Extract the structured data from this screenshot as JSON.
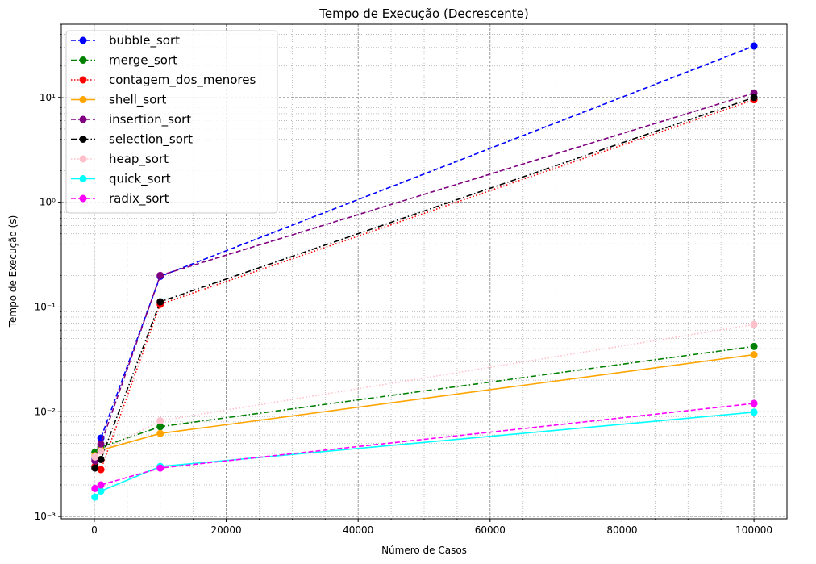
{
  "chart_data": {
    "type": "line",
    "title": "Tempo de Execução (Decrescente)",
    "xlabel": "Número de Casos",
    "ylabel": "Tempo de Execução (s)",
    "xscale": "linear",
    "yscale": "log",
    "xlim": [
      -5000,
      105000
    ],
    "ylim": [
      0.00095,
      50
    ],
    "x_ticks": [
      0,
      20000,
      40000,
      60000,
      80000,
      100000
    ],
    "x_tick_labels": [
      "0",
      "20000",
      "40000",
      "60000",
      "80000",
      "100000"
    ],
    "y_ticks": [
      0.001,
      0.01,
      0.1,
      1,
      10
    ],
    "y_tick_labels": [
      "10⁻³",
      "10⁻²",
      "10⁻¹",
      "10⁰",
      "10¹"
    ],
    "grid": "on (major dashed, minor dotted)",
    "legend_position": "top-left",
    "x": [
      100,
      1000,
      10000,
      100000
    ],
    "series": [
      {
        "name": "bubble_sort",
        "color": "#0000ff",
        "dash": "dashed",
        "values": [
          0.0036,
          0.0056,
          0.196,
          31.0
        ]
      },
      {
        "name": "merge_sort",
        "color": "#008000",
        "dash": "dashdot",
        "values": [
          0.0041,
          0.0046,
          0.0072,
          0.042
        ]
      },
      {
        "name": "contagem_dos_menores",
        "color": "#ff0000",
        "dash": "dotted",
        "values": [
          0.003,
          0.0028,
          0.106,
          9.5
        ]
      },
      {
        "name": "shell_sort",
        "color": "#ffa500",
        "dash": "solid",
        "values": [
          0.0038,
          0.0043,
          0.0062,
          0.035
        ]
      },
      {
        "name": "insertion_sort",
        "color": "#800080",
        "dash": "dashed",
        "values": [
          0.0034,
          0.0049,
          0.2,
          11.0
        ]
      },
      {
        "name": "selection_sort",
        "color": "#000000",
        "dash": "dashdot",
        "values": [
          0.0029,
          0.0035,
          0.112,
          10.0
        ]
      },
      {
        "name": "heap_sort",
        "color": "#ffc0cb",
        "dash": "dotted",
        "values": [
          0.0037,
          0.0042,
          0.0082,
          0.068
        ]
      },
      {
        "name": "quick_sort",
        "color": "#00ffff",
        "dash": "solid",
        "values": [
          0.00153,
          0.00175,
          0.003,
          0.0099
        ]
      },
      {
        "name": "radix_sort",
        "color": "#ff00ff",
        "dash": "dashed",
        "values": [
          0.00185,
          0.002,
          0.0029,
          0.012
        ]
      }
    ]
  }
}
